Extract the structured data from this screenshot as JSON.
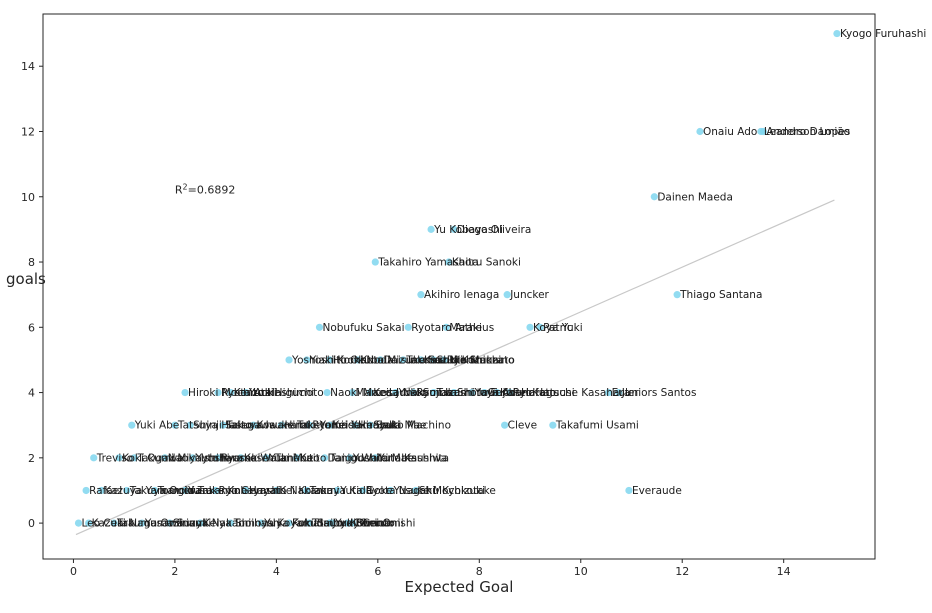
{
  "chart_data": {
    "type": "scatter",
    "xlabel": "Expected Goal",
    "ylabel": "goals",
    "xlim": [
      -0.6,
      15.8
    ],
    "ylim": [
      -1.1,
      15.6
    ],
    "x_ticks": [
      0,
      2,
      4,
      6,
      8,
      10,
      12,
      14
    ],
    "y_ticks": [
      0,
      2,
      4,
      6,
      8,
      10,
      12,
      14
    ],
    "grid": false,
    "point_color": "#7fd6ef",
    "trend_color": "#c8c8c8",
    "annotation": {
      "prefix": "R",
      "superscript": "2",
      "text": "=0.6892",
      "x": 2.0,
      "y": 10.1
    },
    "trendline": {
      "x": [
        0.05,
        15.0
      ],
      "y": [
        -0.35,
        9.9
      ]
    },
    "points": [
      {
        "x": 15.05,
        "y": 15,
        "label": "Kyogo Furuhashi"
      },
      {
        "x": 12.35,
        "y": 12,
        "label": "Onaiu Ado"
      },
      {
        "x": 13.55,
        "y": 12,
        "label": "Leandro Damião"
      },
      {
        "x": 13.6,
        "y": 12,
        "label": "Anderson Lopes"
      },
      {
        "x": 11.45,
        "y": 10,
        "label": "Dainen Maeda"
      },
      {
        "x": 7.05,
        "y": 9,
        "label": "Yu Kobayashi"
      },
      {
        "x": 7.5,
        "y": 9,
        "label": "Diego Oliveira"
      },
      {
        "x": 5.95,
        "y": 8,
        "label": "Takahiro Yamashita"
      },
      {
        "x": 7.4,
        "y": 8,
        "label": "Kaoru Sanoki"
      },
      {
        "x": 6.85,
        "y": 7,
        "label": "Akihiro Ienaga"
      },
      {
        "x": 8.55,
        "y": 7,
        "label": "Juncker"
      },
      {
        "x": 11.9,
        "y": 7,
        "label": "Thiago Santana"
      },
      {
        "x": 4.85,
        "y": 6,
        "label": "Nobufuku Sakai"
      },
      {
        "x": 6.6,
        "y": 6,
        "label": "Ryotaro Araki"
      },
      {
        "x": 7.35,
        "y": 6,
        "label": "Matheus"
      },
      {
        "x": 9.0,
        "y": 6,
        "label": "Koya Yuki"
      },
      {
        "x": 9.2,
        "y": 6,
        "label": "Patric"
      },
      {
        "x": 4.25,
        "y": 5,
        "label": "Yoshiaki Komai"
      },
      {
        "x": 4.6,
        "y": 5,
        "label": "Yoshito Okubo"
      },
      {
        "x": 5.05,
        "y": 5,
        "label": "Hiroki Noda"
      },
      {
        "x": 5.6,
        "y": 5,
        "label": "Kota Mizunuma"
      },
      {
        "x": 6.05,
        "y": 5,
        "label": "Daisuke Suzuki"
      },
      {
        "x": 6.5,
        "y": 5,
        "label": "Takuma Nishimura"
      },
      {
        "x": 6.85,
        "y": 5,
        "label": "Kazuki Kozuka"
      },
      {
        "x": 7.1,
        "y": 5,
        "label": "Shuto Machino"
      },
      {
        "x": 7.3,
        "y": 5,
        "label": "Ryo Shinzato"
      },
      {
        "x": 2.2,
        "y": 4,
        "label": "Hiroki Mochizuki"
      },
      {
        "x": 2.85,
        "y": 4,
        "label": "Ryota Aoki"
      },
      {
        "x": 3.1,
        "y": 4,
        "label": "Kento Hashimoto"
      },
      {
        "x": 3.4,
        "y": 4,
        "label": "Yuta Higuchi"
      },
      {
        "x": 5.0,
        "y": 4,
        "label": "Naoki Maeda"
      },
      {
        "x": 5.5,
        "y": 4,
        "label": "Marcos Junior"
      },
      {
        "x": 5.85,
        "y": 4,
        "label": "Keita Nakamura"
      },
      {
        "x": 6.35,
        "y": 4,
        "label": "Yuki Soma"
      },
      {
        "x": 6.7,
        "y": 4,
        "label": "Ryuji Izumi"
      },
      {
        "x": 7.1,
        "y": 4,
        "label": "Takashi Inui"
      },
      {
        "x": 7.5,
        "y": 4,
        "label": "Shota Fujio"
      },
      {
        "x": 7.85,
        "y": 4,
        "label": "Yuya Asano"
      },
      {
        "x": 8.1,
        "y": 4,
        "label": "Genki Haraguchi"
      },
      {
        "x": 8.35,
        "y": 4,
        "label": "Kohei Kato"
      },
      {
        "x": 8.6,
        "y": 4,
        "label": "Ryo Hatsuse Kasahara"
      },
      {
        "x": 10.55,
        "y": 4,
        "label": "Euler"
      },
      {
        "x": 10.75,
        "y": 4,
        "label": "Juniors Santos"
      },
      {
        "x": 1.15,
        "y": 3,
        "label": "Yuki Abe"
      },
      {
        "x": 2.0,
        "y": 3,
        "label": "Tatsuya Hasegawa"
      },
      {
        "x": 2.3,
        "y": 3,
        "label": "Shinji Saito"
      },
      {
        "x": 2.95,
        "y": 3,
        "label": "Takuya Iwanami"
      },
      {
        "x": 3.55,
        "y": 3,
        "label": "Kosuke Taketomi"
      },
      {
        "x": 4.1,
        "y": 3,
        "label": "Hiroto Yamada"
      },
      {
        "x": 4.65,
        "y": 3,
        "label": "Ryohei Yamazaki"
      },
      {
        "x": 5.05,
        "y": 3,
        "label": "Keisuke Saka"
      },
      {
        "x": 5.55,
        "y": 3,
        "label": "Hiroyuki Mae"
      },
      {
        "x": 5.85,
        "y": 3,
        "label": "Shuto Machino"
      },
      {
        "x": 8.5,
        "y": 3,
        "label": "Cleve"
      },
      {
        "x": 9.45,
        "y": 3,
        "label": "Takafumi Usami"
      },
      {
        "x": 0.4,
        "y": 2,
        "label": "Treviso"
      },
      {
        "x": 0.9,
        "y": 2,
        "label": "Koki Ogawa"
      },
      {
        "x": 1.2,
        "y": 2,
        "label": "Takumi Miyayoshi"
      },
      {
        "x": 1.8,
        "y": 2,
        "label": "Naoki Ishihara"
      },
      {
        "x": 2.35,
        "y": 2,
        "label": "Yuto Iwasaki"
      },
      {
        "x": 2.85,
        "y": 2,
        "label": "Ryoma Watanabe"
      },
      {
        "x": 3.3,
        "y": 2,
        "label": "Kosei Tani"
      },
      {
        "x": 3.8,
        "y": 2,
        "label": "Yuki Muto"
      },
      {
        "x": 4.4,
        "y": 2,
        "label": "Kaito Taniguchi"
      },
      {
        "x": 4.95,
        "y": 2,
        "label": "Daigo Watanabe"
      },
      {
        "x": 5.45,
        "y": 2,
        "label": "Yoshiki Matsushita"
      },
      {
        "x": 5.95,
        "y": 2,
        "label": "Yuto Kashiwa"
      },
      {
        "x": 0.25,
        "y": 1,
        "label": "Rafael"
      },
      {
        "x": 0.55,
        "y": 1,
        "label": "Kazuya Yamamura"
      },
      {
        "x": 1.05,
        "y": 1,
        "label": "Takuya Ogiwara"
      },
      {
        "x": 1.6,
        "y": 1,
        "label": "Tomoki Takamine"
      },
      {
        "x": 2.2,
        "y": 1,
        "label": "Yusuke Kobayashi"
      },
      {
        "x": 2.8,
        "y": 1,
        "label": "Ryo Germain"
      },
      {
        "x": 3.4,
        "y": 1,
        "label": "Hayato Nakama"
      },
      {
        "x": 4.0,
        "y": 1,
        "label": "Kei Koizumi"
      },
      {
        "x": 4.6,
        "y": 1,
        "label": "Takuya Kida"
      },
      {
        "x": 5.2,
        "y": 1,
        "label": "Yuta Goke"
      },
      {
        "x": 5.7,
        "y": 1,
        "label": "Ryota Nagaki"
      },
      {
        "x": 6.25,
        "y": 1,
        "label": "Yusuke Mochizuki"
      },
      {
        "x": 6.75,
        "y": 1,
        "label": "Shu Kyokotake"
      },
      {
        "x": 10.95,
        "y": 1,
        "label": "Everaude"
      },
      {
        "x": 0.1,
        "y": 0,
        "label": "Leo Ceara"
      },
      {
        "x": 0.3,
        "y": 0,
        "label": "Kazuki Nagasawa"
      },
      {
        "x": 0.8,
        "y": 0,
        "label": "Takuma Ominami"
      },
      {
        "x": 1.35,
        "y": 0,
        "label": "Yuma Suzuki"
      },
      {
        "x": 1.9,
        "y": 0,
        "label": "Shinya Nakano"
      },
      {
        "x": 2.5,
        "y": 0,
        "label": "Keiya Shiihashi"
      },
      {
        "x": 3.1,
        "y": 0,
        "label": "Tomoya Koyamatsu"
      },
      {
        "x": 3.7,
        "y": 0,
        "label": "Yuya Fukuda"
      },
      {
        "x": 4.25,
        "y": 0,
        "label": "Koki Saito"
      },
      {
        "x": 4.65,
        "y": 0,
        "label": "Tomoya Ominami"
      },
      {
        "x": 5.05,
        "y": 0,
        "label": "Jordy Croux"
      },
      {
        "x": 5.1,
        "y": 0,
        "label": "Yuki Omoto"
      },
      {
        "x": 5.4,
        "y": 0,
        "label": "Kohei Onishi"
      },
      {
        "x": 5.5,
        "y": 0,
        "label": "Bueno"
      }
    ]
  }
}
